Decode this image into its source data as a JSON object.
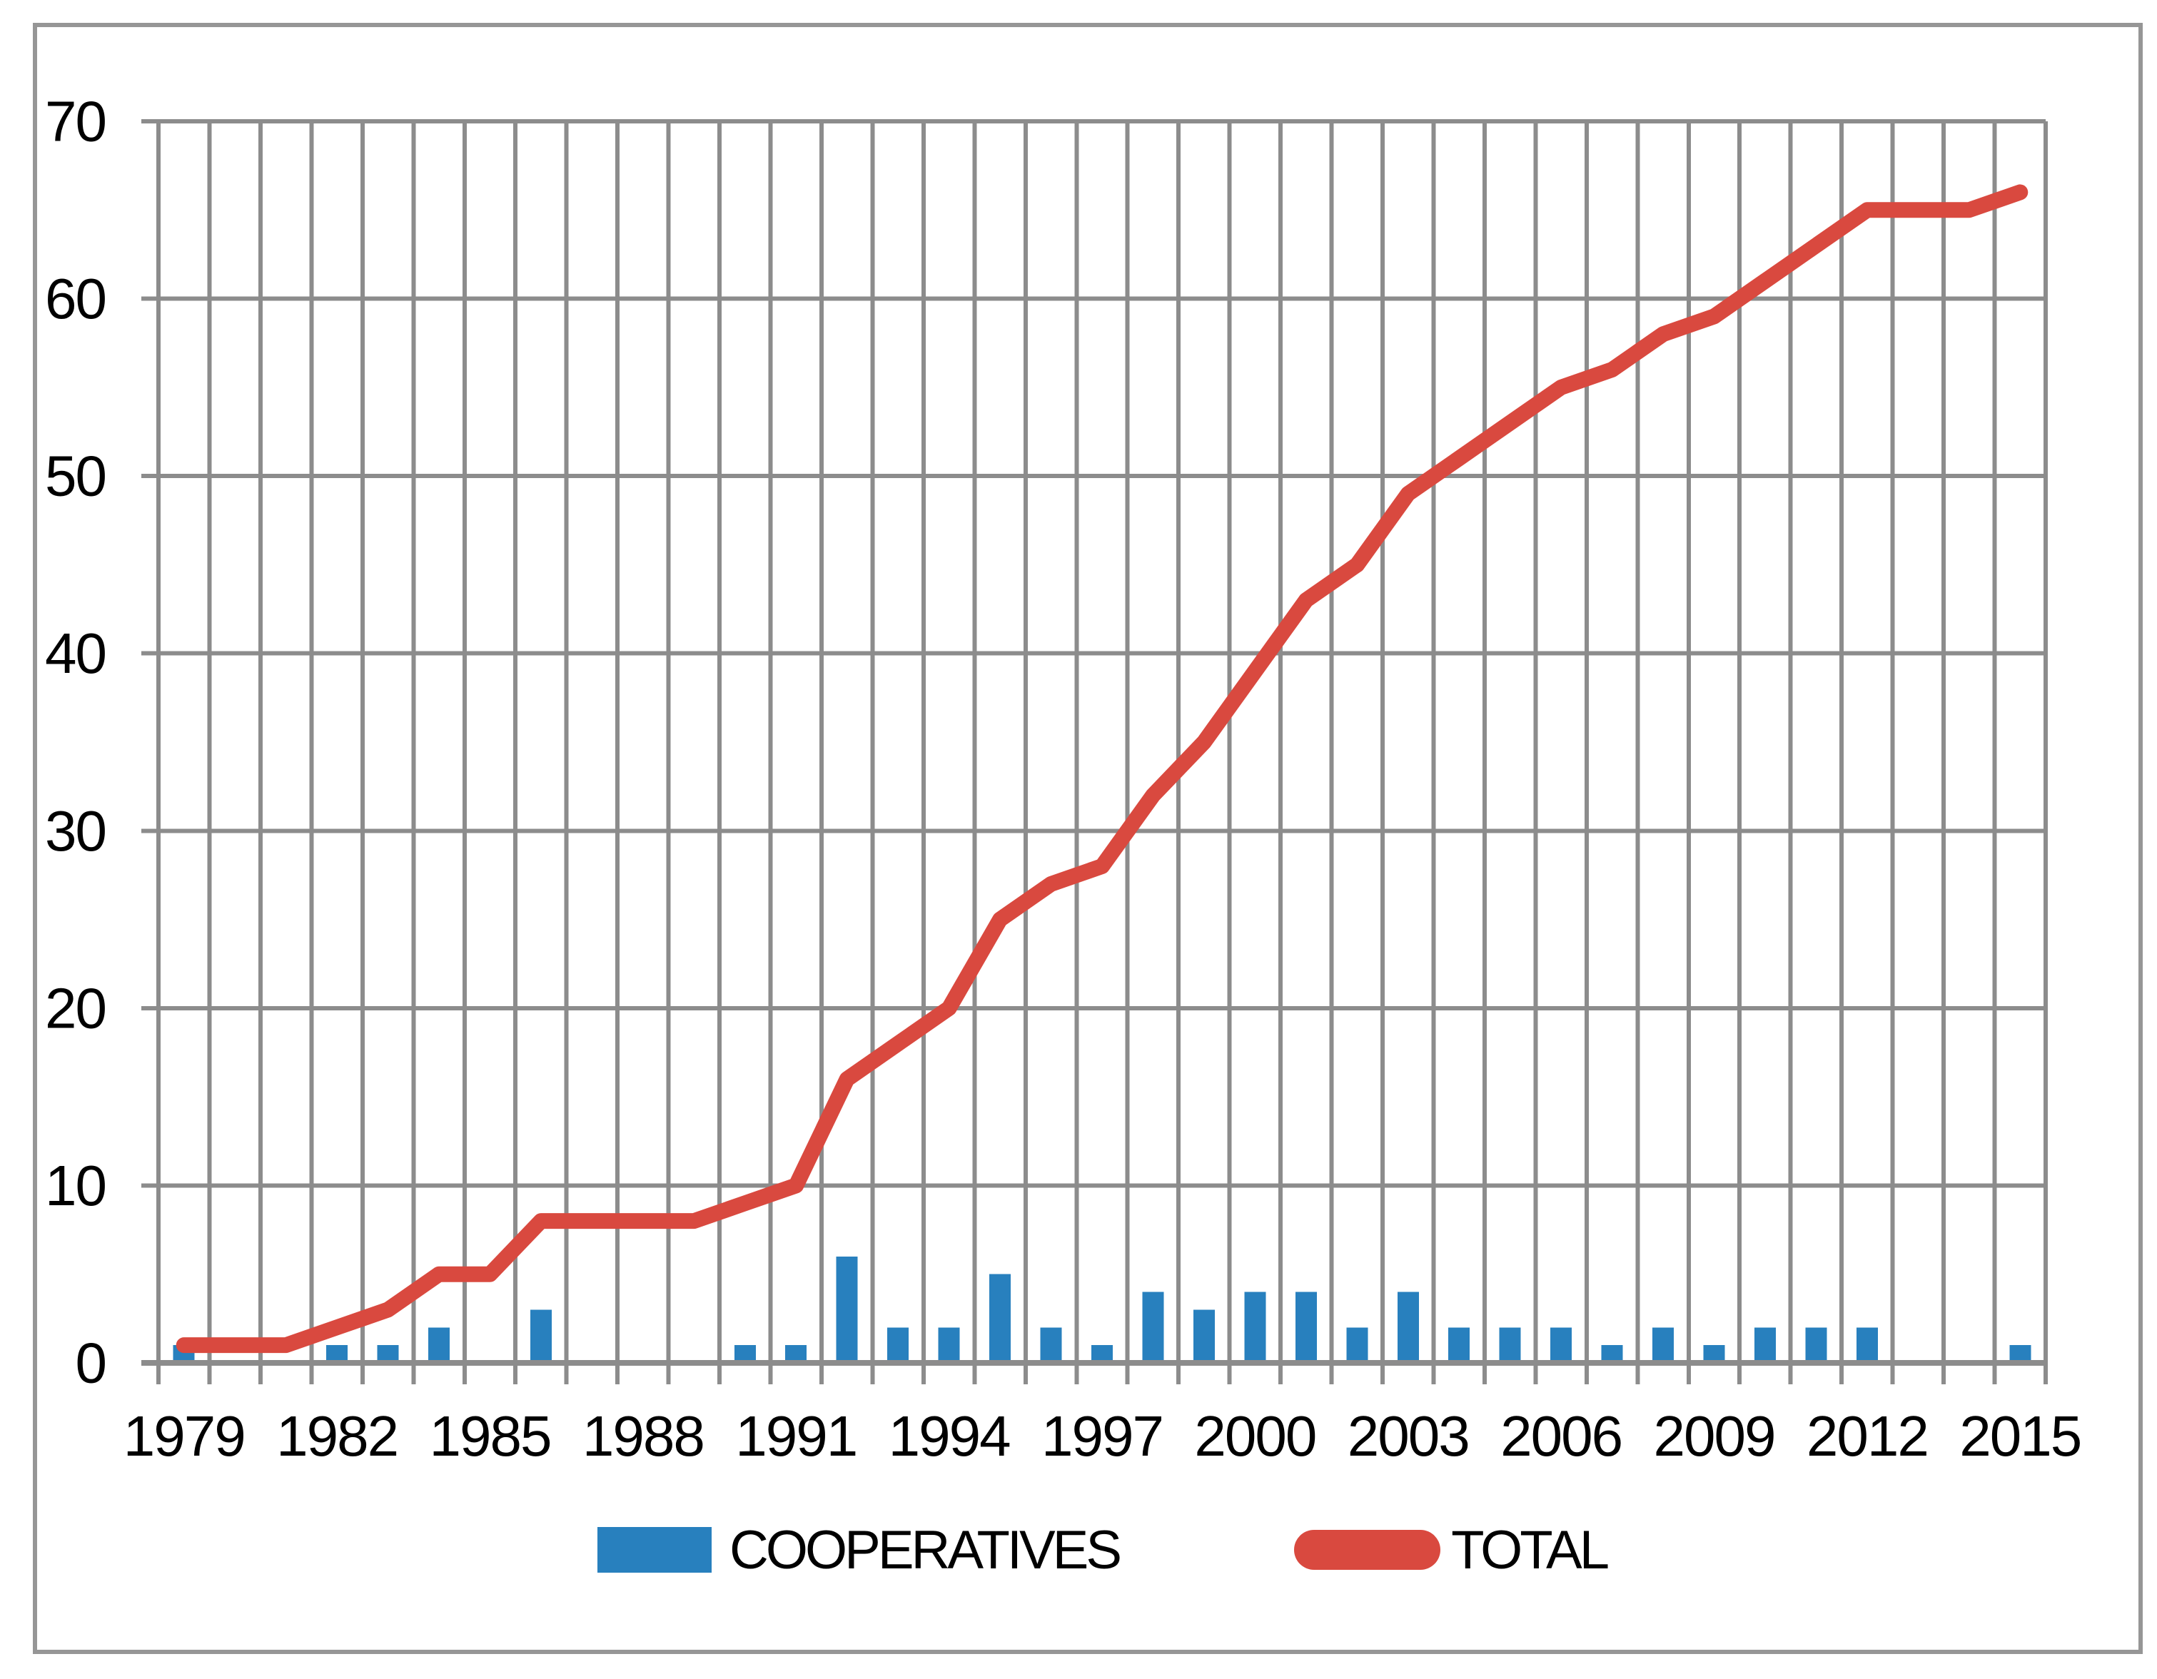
{
  "figure": {
    "background_color": "#FFFFFF",
    "border_color": "#969696"
  },
  "legend": {
    "cooperatives_label": "COOPERATIVES",
    "total_label": "TOTAL"
  },
  "chart_data": {
    "type": "combo",
    "title": "",
    "xlabel": "",
    "ylabel": "",
    "x": [
      1979,
      1980,
      1981,
      1982,
      1983,
      1984,
      1985,
      1986,
      1987,
      1988,
      1989,
      1990,
      1991,
      1992,
      1993,
      1994,
      1995,
      1996,
      1997,
      1998,
      1999,
      2000,
      2001,
      2002,
      2003,
      2004,
      2005,
      2006,
      2007,
      2008,
      2009,
      2010,
      2011,
      2012,
      2013,
      2014,
      2015
    ],
    "x_tick_labels": [
      "1979",
      "1982",
      "1985",
      "1988",
      "1991",
      "1994",
      "1997",
      "2000",
      "2003",
      "2006",
      "2009",
      "2012",
      "2015"
    ],
    "x_tick_interval": 3,
    "ylim": [
      0,
      70
    ],
    "ytick_step": 10,
    "y_tick_labels": [
      "0",
      "10",
      "20",
      "30",
      "40",
      "50",
      "60",
      "70"
    ],
    "grid": "horizontal-and-vertical",
    "gridline_color": "#8C8C8C",
    "legend_position": "bottom-center",
    "series": [
      {
        "name": "COOPERATIVES",
        "type": "bar",
        "color": "#2880BE",
        "values": [
          1,
          0,
          0,
          1,
          1,
          2,
          0,
          3,
          0,
          0,
          0,
          1,
          1,
          6,
          2,
          2,
          5,
          2,
          1,
          4,
          3,
          4,
          4,
          2,
          4,
          2,
          2,
          2,
          1,
          2,
          1,
          2,
          2,
          2,
          0,
          0,
          1
        ]
      },
      {
        "name": "TOTAL",
        "type": "line",
        "color": "#D9493F",
        "values": [
          1,
          1,
          1,
          2,
          3,
          5,
          5,
          8,
          8,
          8,
          8,
          9,
          10,
          16,
          18,
          20,
          25,
          27,
          28,
          32,
          35,
          39,
          43,
          45,
          49,
          51,
          53,
          55,
          56,
          58,
          59,
          61,
          63,
          65,
          65,
          65,
          66
        ]
      }
    ]
  }
}
